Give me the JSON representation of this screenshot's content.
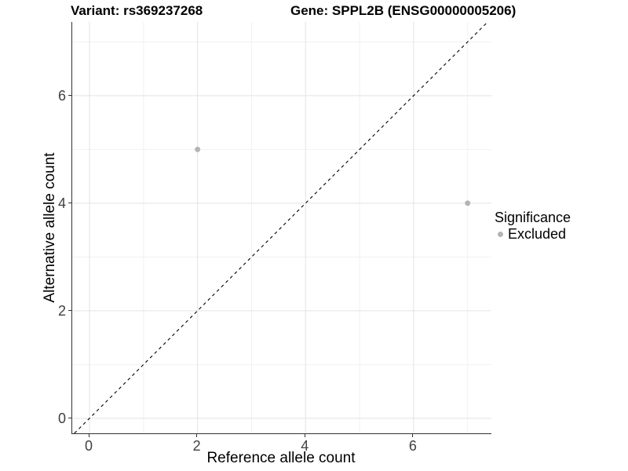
{
  "chart_data": {
    "type": "scatter",
    "title_left": "Variant: rs369237268",
    "title_right": "Gene: SPPL2B (ENSG00000005206)",
    "xlabel": "Reference allele count",
    "ylabel": "Alternative allele count",
    "xlim": [
      -0.32,
      7.44
    ],
    "ylim": [
      -0.28,
      7.37
    ],
    "x_ticks": [
      0,
      2,
      4,
      6
    ],
    "y_ticks": [
      0,
      2,
      4,
      6
    ],
    "x_minor_ticks": [
      1,
      3,
      5,
      7
    ],
    "y_minor_ticks": [
      1,
      3,
      5,
      7
    ],
    "grid": "on",
    "points": [
      {
        "x": 2,
        "y": 5,
        "series": "Excluded"
      },
      {
        "x": 7,
        "y": 4,
        "series": "Excluded"
      }
    ],
    "reference_line": {
      "slope": 1,
      "intercept": 0,
      "style": "dashed"
    },
    "legend": {
      "title": "Significance",
      "position": "right",
      "items": [
        {
          "label": "Excluded",
          "color": "#b4b4b4"
        }
      ]
    },
    "colors": {
      "point": "#b4b4b4",
      "grid_major": "#e3e3e3",
      "grid_minor": "#f1f1f1",
      "axis_line": "#333333",
      "tick_label": "#404040",
      "reference_line": "#000000"
    }
  }
}
